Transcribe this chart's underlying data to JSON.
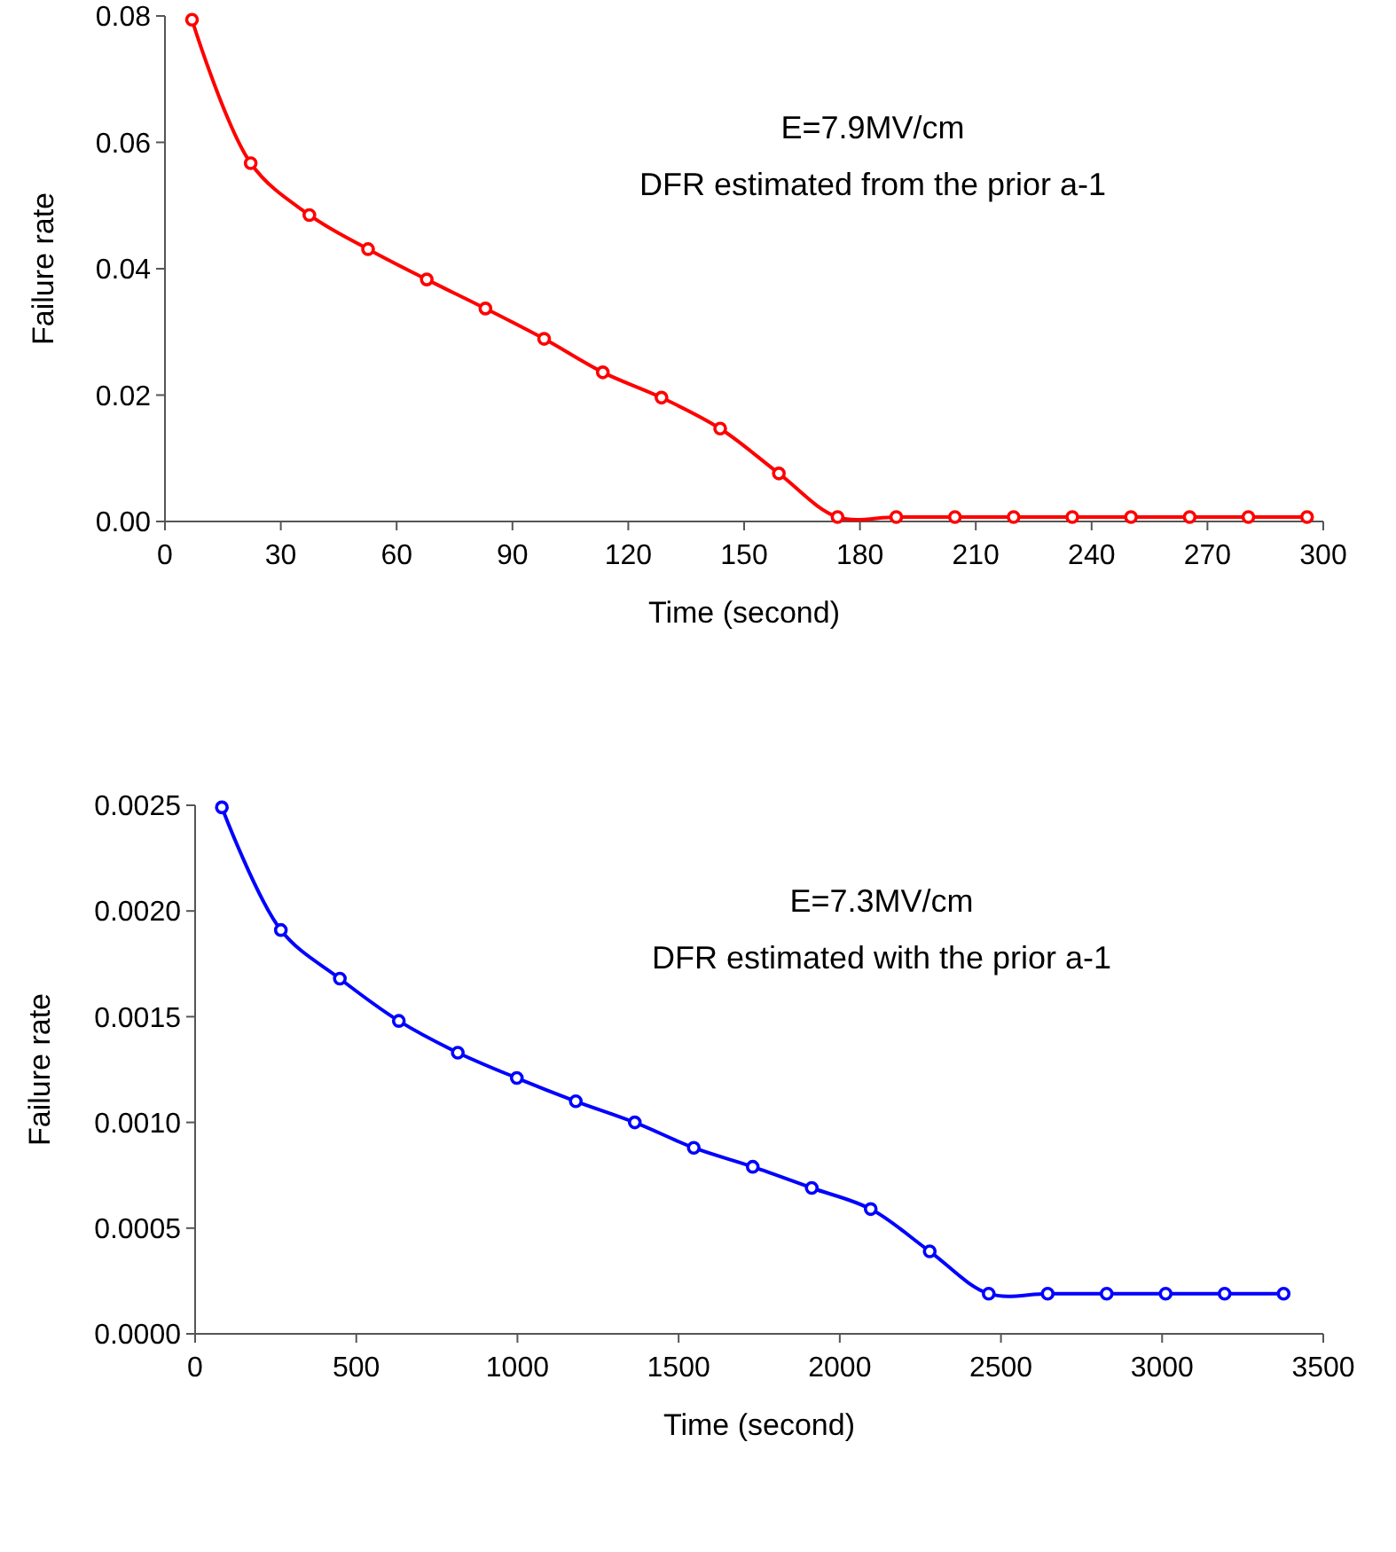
{
  "chart_data": [
    {
      "type": "line",
      "xlabel": "Time (second)",
      "ylabel": "Failure rate",
      "annotations": [
        "E=7.9MV/cm",
        "DFR estimated from the prior a-1"
      ],
      "x": [
        7,
        22.2,
        37.4,
        52.6,
        67.8,
        83,
        98.2,
        113.4,
        128.6,
        143.8,
        159,
        174.2,
        189.4,
        204.6,
        219.8,
        235,
        250.2,
        265.4,
        280.6,
        295.8
      ],
      "series": [
        {
          "color": "#ff0000",
          "values": [
            0.0794,
            0.0567,
            0.0485,
            0.0431,
            0.0383,
            0.0337,
            0.0289,
            0.0236,
            0.0196,
            0.0147,
            0.0076,
            0.0007,
            0.0007,
            0.0007,
            0.0007,
            0.0007,
            0.0007,
            0.0007,
            0.0007,
            0.0007
          ]
        }
      ],
      "xlim": [
        0,
        300
      ],
      "xticks": [
        0,
        30,
        60,
        90,
        120,
        150,
        180,
        210,
        240,
        270,
        300
      ],
      "ylim": [
        0,
        0.08
      ],
      "yticks": [
        {
          "value": 0,
          "label": "0.00"
        },
        {
          "value": 0.02,
          "label": "0.02"
        },
        {
          "value": 0.04,
          "label": "0.04"
        },
        {
          "value": 0.06,
          "label": "0.06"
        },
        {
          "value": 0.08,
          "label": "0.08"
        }
      ],
      "grid": false,
      "marker": "circle",
      "line_style": "solid"
    },
    {
      "type": "line",
      "xlabel": "Time (second)",
      "ylabel": "Failure rate",
      "annotations": [
        "E=7.3MV/cm",
        "DFR estimated with the prior a-1"
      ],
      "x": [
        83,
        266,
        449,
        632,
        815,
        998,
        1181,
        1364,
        1547,
        1730,
        1913,
        2096,
        2279,
        2462,
        2645,
        2828,
        3011,
        3194,
        3377
      ],
      "series": [
        {
          "color": "#0000ff",
          "values": [
            0.00249,
            0.00191,
            0.00168,
            0.00148,
            0.00133,
            0.00121,
            0.0011,
            0.001,
            0.00088,
            0.00079,
            0.00069,
            0.00059,
            0.00039,
            0.00019,
            0.00019,
            0.00019,
            0.00019,
            0.00019,
            0.00019
          ]
        }
      ],
      "xlim": [
        0,
        3500
      ],
      "xticks": [
        0,
        500,
        1000,
        1500,
        2000,
        2500,
        3000,
        3500
      ],
      "ylim": [
        0,
        0.0025
      ],
      "yticks": [
        {
          "value": 0,
          "label": "0.0000"
        },
        {
          "value": 0.0005,
          "label": "0.0005"
        },
        {
          "value": 0.001,
          "label": "0.0010"
        },
        {
          "value": 0.0015,
          "label": "0.0015"
        },
        {
          "value": 0.002,
          "label": "0.0020"
        },
        {
          "value": 0.0025,
          "label": "0.0025"
        }
      ],
      "grid": false,
      "marker": "circle",
      "line_style": "solid"
    }
  ]
}
